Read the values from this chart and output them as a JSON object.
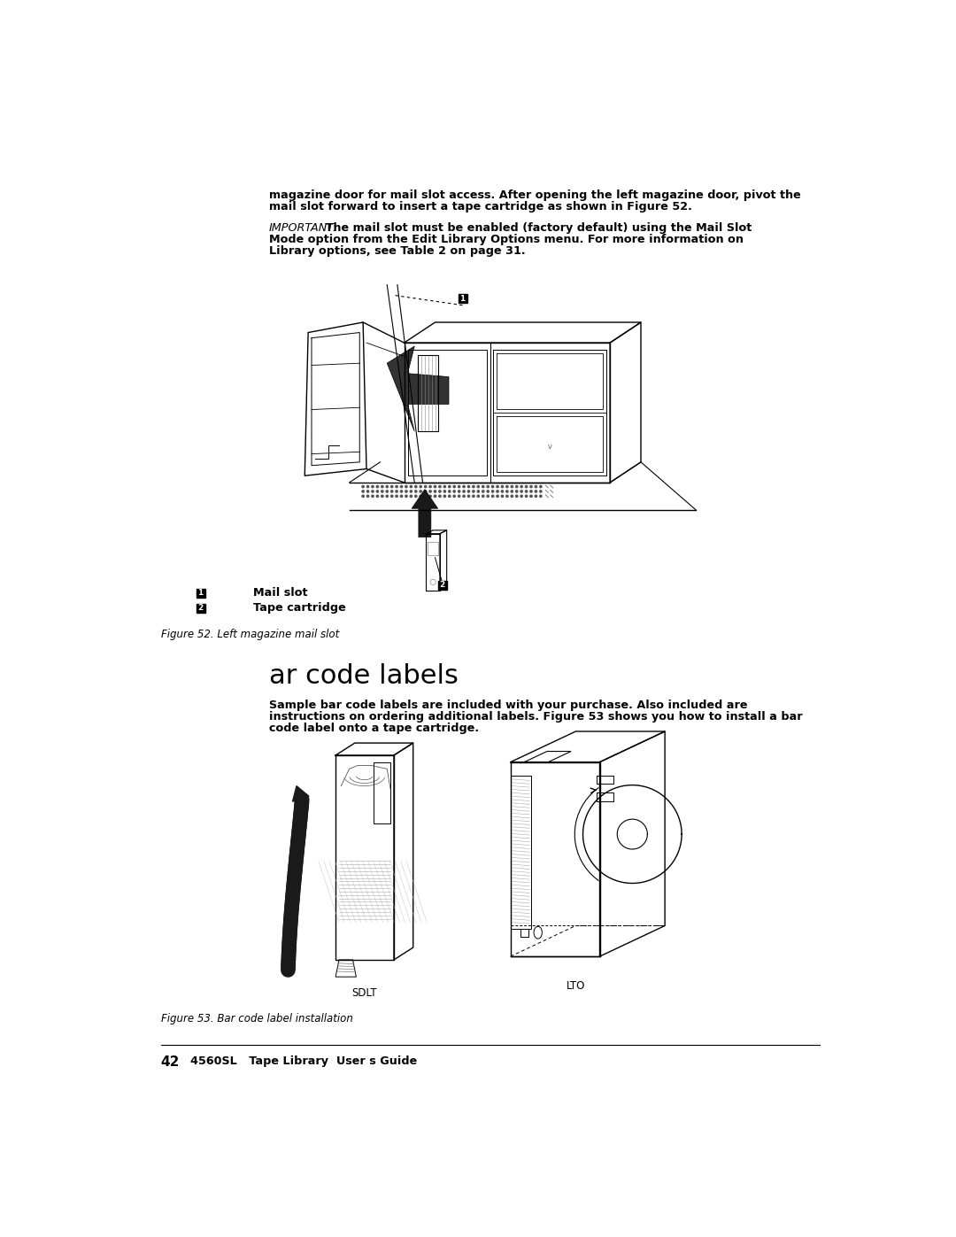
{
  "bg_color": "#ffffff",
  "text_color": "#000000",
  "page_width": 10.8,
  "page_height": 13.97,
  "top_text_1": "magazine door for mail slot access. After opening the left magazine door, pivot the",
  "top_text_2": "mail slot forward to insert a tape cartridge as shown in Figure 52.",
  "important_label": "IMPORTANT:",
  "important_text_1": " The mail slot must be enabled (factory default) using the Mail Slot",
  "important_text_2": "Mode option from the Edit Library Options menu. For more information on",
  "important_text_3": "Library options, see Table 2 on page 31.",
  "label1_text": "Mail slot",
  "label2_text": "Tape cartridge",
  "fig52_caption": "Figure 52. Left magazine mail slot",
  "section_title": "ar code labels",
  "section_para_1": "Sample bar code labels are included with your purchase. Also included are",
  "section_para_2": "instructions on ordering additional labels. Figure 53 shows you how to install a bar",
  "section_para_3": "code label onto a tape cartridge.",
  "fig53_caption": "Figure 53. Bar code label installation",
  "sdlt_label": "SDLT",
  "lto_label": "LTO",
  "footer_page": "42",
  "footer_text": "4560SL   Tape Library  User s Guide"
}
